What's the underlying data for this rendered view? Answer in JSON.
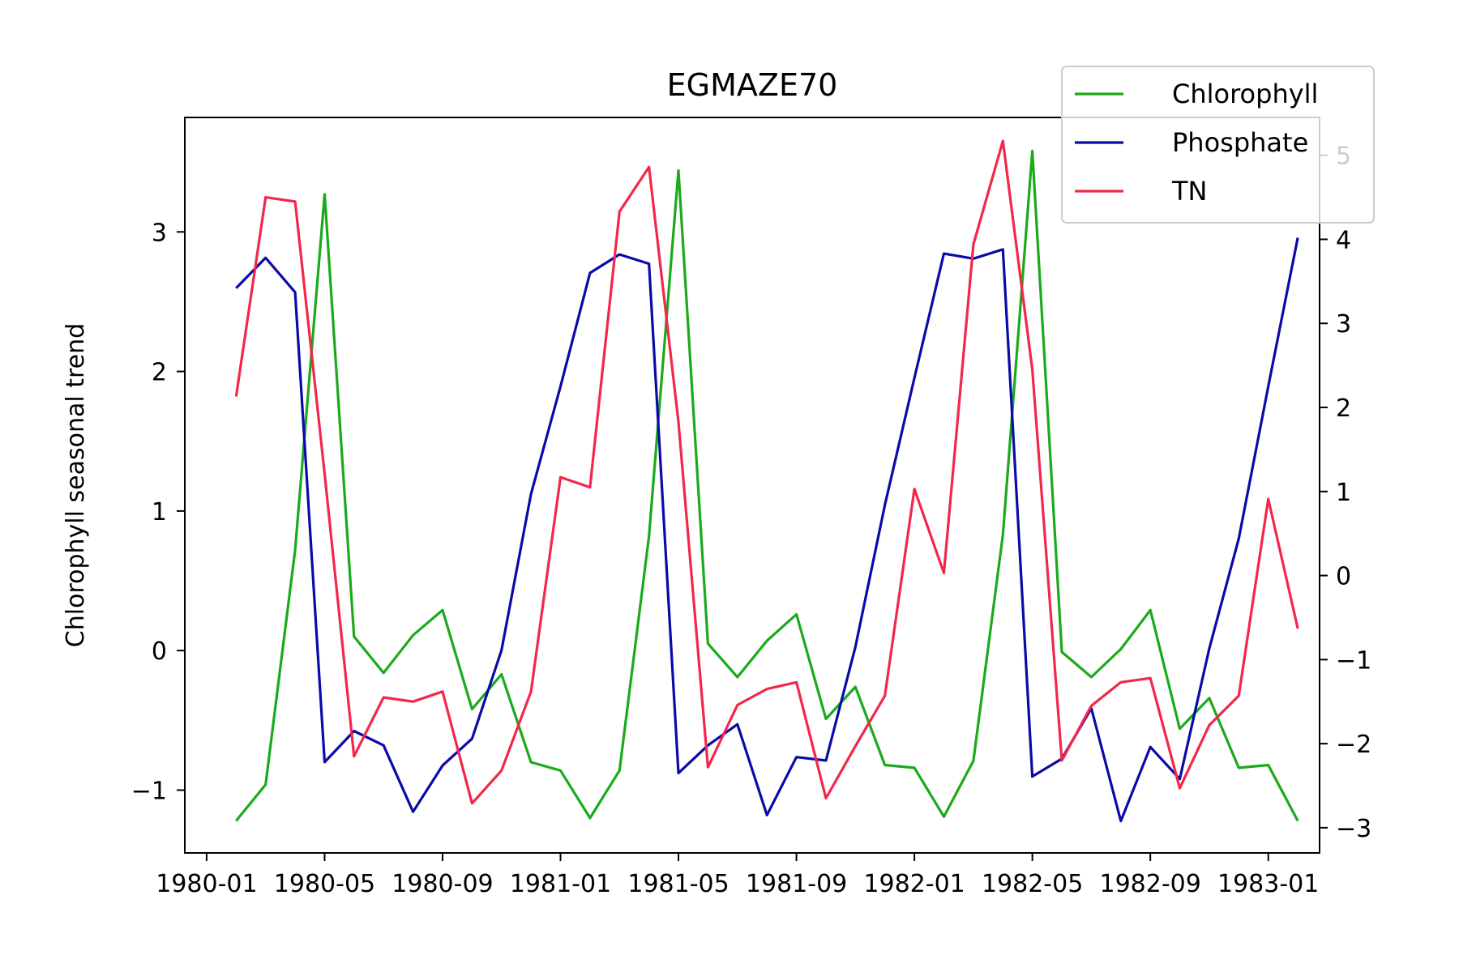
{
  "chart_data": {
    "type": "line",
    "title": "EGMAZE70",
    "xlabel": "",
    "ylabel": "Chlorophyll seasonal trend",
    "y2label": "",
    "x": [
      "1980-02",
      "1980-03",
      "1980-04",
      "1980-05",
      "1980-06",
      "1980-07",
      "1980-08",
      "1980-09",
      "1980-10",
      "1980-11",
      "1980-12",
      "1981-01",
      "1981-02",
      "1981-03",
      "1981-04",
      "1981-05",
      "1981-06",
      "1981-07",
      "1981-08",
      "1981-09",
      "1981-10",
      "1981-11",
      "1981-12",
      "1982-01",
      "1982-02",
      "1982-03",
      "1982-04",
      "1982-05",
      "1982-06",
      "1982-07",
      "1982-08",
      "1982-09",
      "1982-10",
      "1982-11",
      "1982-12",
      "1983-01",
      "1983-02"
    ],
    "x_tick_labels": [
      "1980-01",
      "1980-05",
      "1980-09",
      "1981-01",
      "1981-05",
      "1981-09",
      "1982-01",
      "1982-05",
      "1982-09",
      "1983-01"
    ],
    "ylim": [
      -1.45,
      3.82
    ],
    "yticks": [
      -1,
      0,
      1,
      2,
      3
    ],
    "y2lim": [
      -3.3,
      5.45
    ],
    "y2ticks": [
      -3,
      -2,
      -1,
      0,
      1,
      2,
      3,
      4,
      5
    ],
    "legend_position": "top-right",
    "series": [
      {
        "name": "Chlorophyll",
        "axis": "left",
        "color": "#1aaa1a",
        "values": [
          -1.22,
          -0.96,
          0.72,
          3.27,
          0.1,
          -0.16,
          0.11,
          0.29,
          -0.42,
          -0.17,
          -0.8,
          -0.86,
          -1.2,
          -0.86,
          0.82,
          3.44,
          0.05,
          -0.19,
          0.07,
          0.26,
          -0.49,
          -0.26,
          -0.82,
          -0.84,
          -1.19,
          -0.79,
          0.83,
          3.58,
          -0.01,
          -0.19,
          0.01,
          0.29,
          -0.56,
          -0.34,
          -0.84,
          -0.82,
          -1.22
        ]
      },
      {
        "name": "Phosphate",
        "axis": "right",
        "color": "#0a0aa8",
        "values": [
          3.42,
          3.78,
          3.37,
          -2.22,
          -1.85,
          -2.02,
          -2.81,
          -2.26,
          -1.94,
          -0.89,
          0.97,
          2.25,
          3.6,
          3.82,
          3.71,
          -2.35,
          -2.02,
          -1.77,
          -2.85,
          -2.16,
          -2.2,
          -0.85,
          0.84,
          2.35,
          3.83,
          3.77,
          3.88,
          -2.39,
          -2.18,
          -1.58,
          -2.92,
          -2.04,
          -2.42,
          -0.87,
          0.44,
          2.25,
          4.02
        ]
      },
      {
        "name": "TN",
        "axis": "right",
        "color": "#f2274a",
        "values": [
          2.13,
          4.5,
          4.45,
          1.21,
          -2.15,
          -1.45,
          -1.5,
          -1.38,
          -2.71,
          -2.32,
          -1.38,
          1.17,
          1.05,
          4.33,
          4.86,
          1.83,
          -2.28,
          -1.54,
          -1.35,
          -1.27,
          -2.65,
          -2.03,
          -1.43,
          1.03,
          0.03,
          3.94,
          5.17,
          2.45,
          -2.2,
          -1.55,
          -1.27,
          -1.22,
          -2.53,
          -1.78,
          -1.43,
          0.91,
          -0.63
        ]
      }
    ]
  }
}
